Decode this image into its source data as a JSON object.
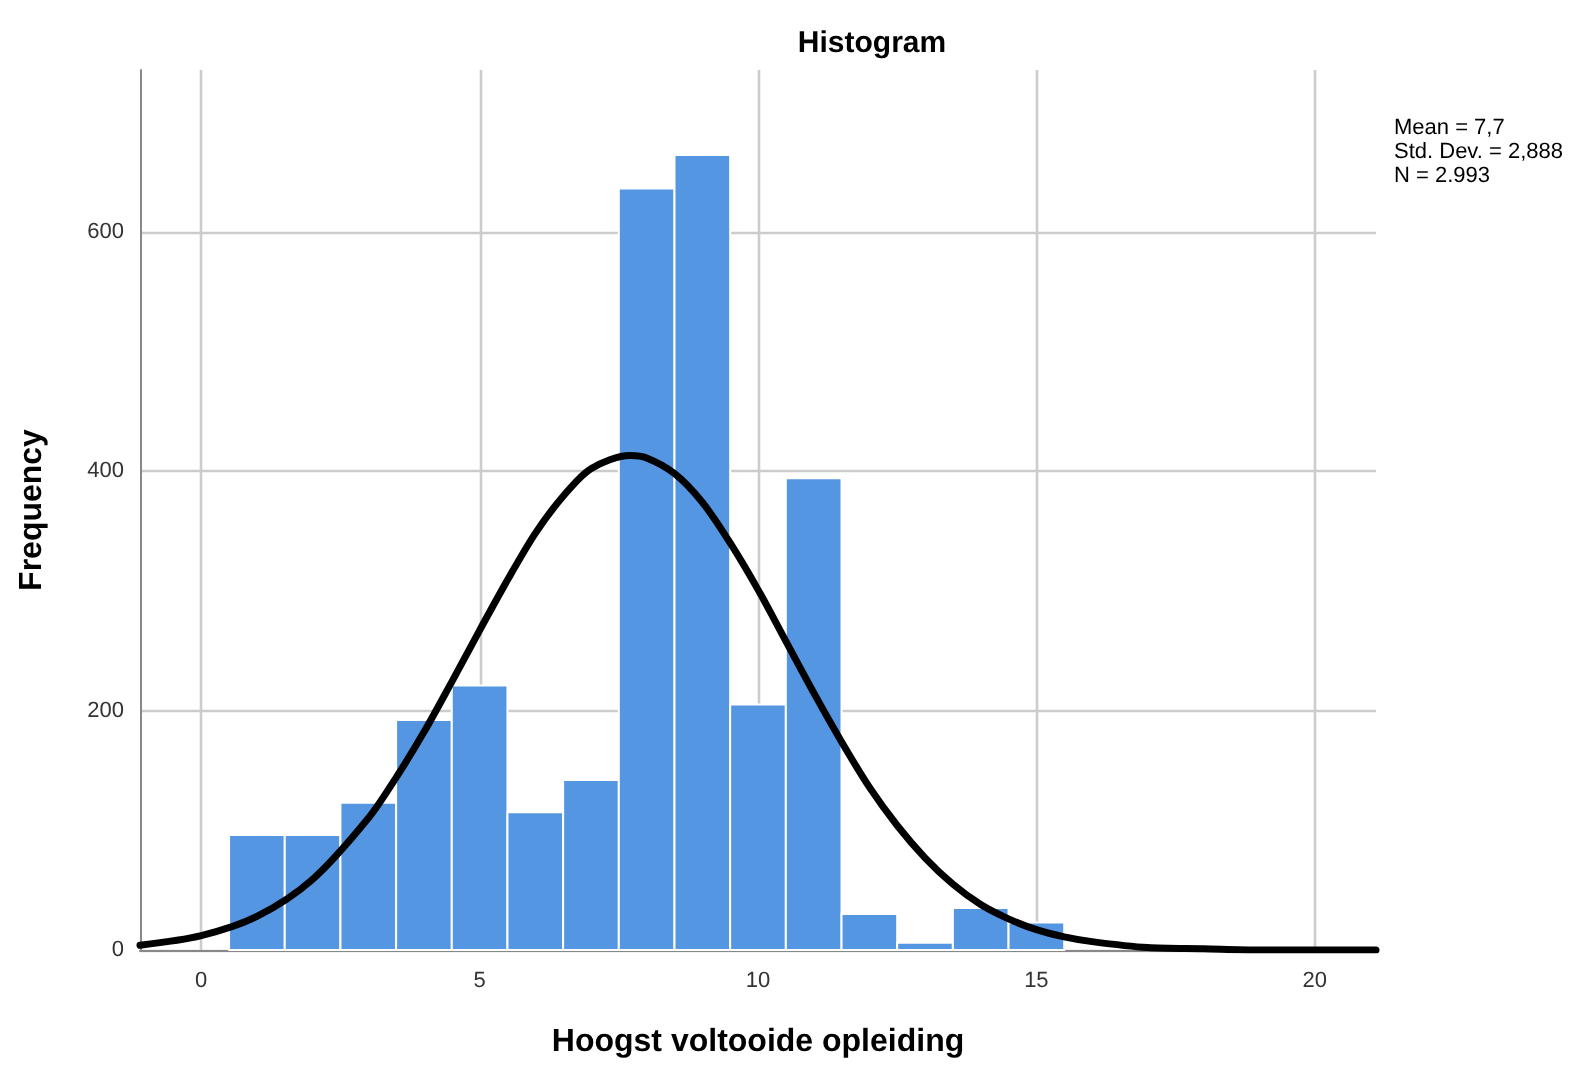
{
  "chart_data": {
    "type": "histogram",
    "title": "Histogram",
    "xlabel": "Hoogst voltooide opleiding",
    "ylabel": "Frequency",
    "annotations": [
      "Mean = 7,7\nStd. Dev. = 2,888\nN = 2.993"
    ],
    "series": [
      {
        "color": "#5596e3",
        "bins": [
          0.5,
          1.5,
          2.5,
          3.5,
          4.5,
          5.5,
          6.5,
          7.5,
          8.5,
          9.5,
          10.5,
          11.5,
          12.5,
          13.5,
          14.5,
          15.5
        ],
        "values": [
          96,
          96,
          123,
          192,
          221,
          115,
          142,
          636,
          664,
          205,
          394,
          30,
          6,
          35,
          23
        ]
      },
      {
        "type": "line",
        "color": "#000000",
        "x": [
          -1.1,
          0,
          1,
          2,
          3,
          3.5,
          4,
          4.5,
          5,
          5.5,
          6,
          6.5,
          7,
          7.7,
          8,
          8.5,
          9,
          9.5,
          10,
          10.5,
          11,
          11.5,
          12,
          12.5,
          13,
          13.5,
          14,
          14.5,
          15,
          15.5,
          16,
          17,
          18,
          19,
          20,
          21,
          21.1
        ],
        "values": [
          4,
          12,
          28,
          59,
          110,
          144,
          182,
          224,
          267,
          309,
          348,
          379,
          402,
          413,
          411,
          398,
          374,
          340,
          301,
          258,
          215,
          174,
          136,
          104,
          77,
          55,
          38,
          26,
          17,
          11,
          7,
          2,
          1,
          0,
          0,
          0,
          0
        ]
      }
    ],
    "xlim": [
      -1.1,
      21.1
    ],
    "xticks": [
      0,
      5,
      10,
      15,
      20
    ],
    "ylim": [
      0,
      735
    ],
    "yticks": [
      0,
      200,
      400,
      600
    ],
    "grid": true,
    "marker": "none",
    "line_style": "solid"
  }
}
